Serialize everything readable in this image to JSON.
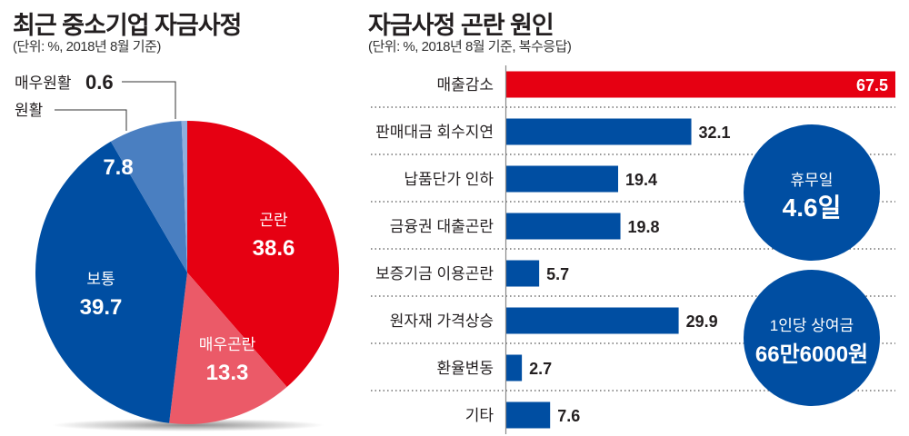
{
  "colors": {
    "red": "#e60012",
    "light_red": "#eb5a68",
    "blue": "#004ea2",
    "mid_blue": "#4a7fc1",
    "light_blue": "#8eaede",
    "text": "#231f20",
    "axis": "#888888"
  },
  "chart_data": [
    {
      "type": "pie",
      "title": "최근 중소기업 자금사정",
      "subtitle": "(단위: %, 2018년 8월 기준)",
      "start": "12 o'clock, clockwise",
      "slices": [
        {
          "label": "곤란",
          "value": 38.6,
          "color": "#e60012",
          "label_position": "inside"
        },
        {
          "label": "매우곤란",
          "value": 13.3,
          "color": "#eb5a68",
          "label_position": "inside"
        },
        {
          "label": "보통",
          "value": 39.7,
          "color": "#004ea2",
          "label_position": "inside"
        },
        {
          "label": "원활",
          "value": 7.8,
          "color": "#4a7fc1",
          "label_position": "callout-name, value-inside"
        },
        {
          "label": "매우원활",
          "value": 0.6,
          "color": "#8eaede",
          "label_position": "callout"
        }
      ]
    },
    {
      "type": "bar",
      "orientation": "horizontal",
      "title": "자금사정 곤란 원인",
      "subtitle": "(단위: %, 2018년 8월 기준, 복수응답)",
      "categories": [
        "매출감소",
        "판매대금 회수지연",
        "납품단가 인하",
        "금융권 대출곤란",
        "보증기금 이용곤란",
        "원자재 가격상승",
        "환율변동",
        "기타"
      ],
      "values": [
        67.5,
        32.1,
        19.4,
        19.8,
        5.7,
        29.9,
        2.7,
        7.6
      ],
      "highlight_index": 0,
      "highlight_color": "#e60012",
      "bar_color": "#004ea2",
      "xlim": [
        0,
        67.5
      ],
      "grid": "dotted row separators",
      "annotations": [
        {
          "label": "휴무일",
          "value": "4.6일"
        },
        {
          "label": "1인당 상여금",
          "value": "66만6000원"
        }
      ]
    }
  ]
}
